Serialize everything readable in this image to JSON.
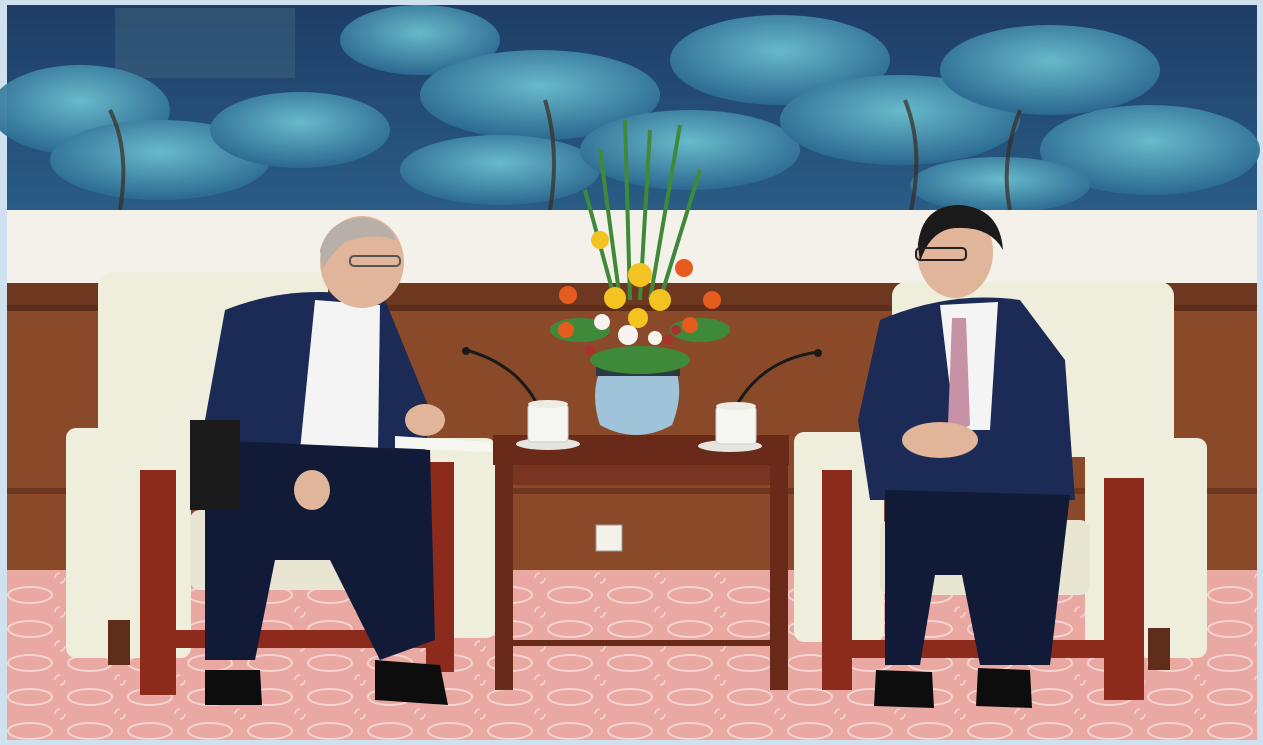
{
  "scene": {
    "kind": "photograph",
    "colors": {
      "mural_deep": "#1c3a63",
      "mural_mid": "#2f6a8f",
      "mural_light": "#5fb0c4",
      "panel_white": "#f3f1ea",
      "wood": "#8a4a2a",
      "wood_dark": "#5e2e1a",
      "carpet": "#e9a8a2",
      "carpet_pattern": "#f5d3cf",
      "chair": "#efeedd",
      "chair_trim": "#8c2a1c",
      "suit": "#1b2b55",
      "suit_dark": "#111b38",
      "shirt": "#f4f4f4",
      "skin": "#e0b59a",
      "hair_gray": "#b8b0a8",
      "hair_black": "#1a1a1a",
      "tie": "#c892a6",
      "vase": "#9fc3d8",
      "flower_yellow": "#f3c322",
      "flower_orange": "#e65b1e",
      "flower_white": "#f7f3ef",
      "leaf": "#3f8a3a",
      "table": "#6a2a19",
      "cup": "#f6f6f2",
      "border": "#cfe0ee"
    }
  }
}
